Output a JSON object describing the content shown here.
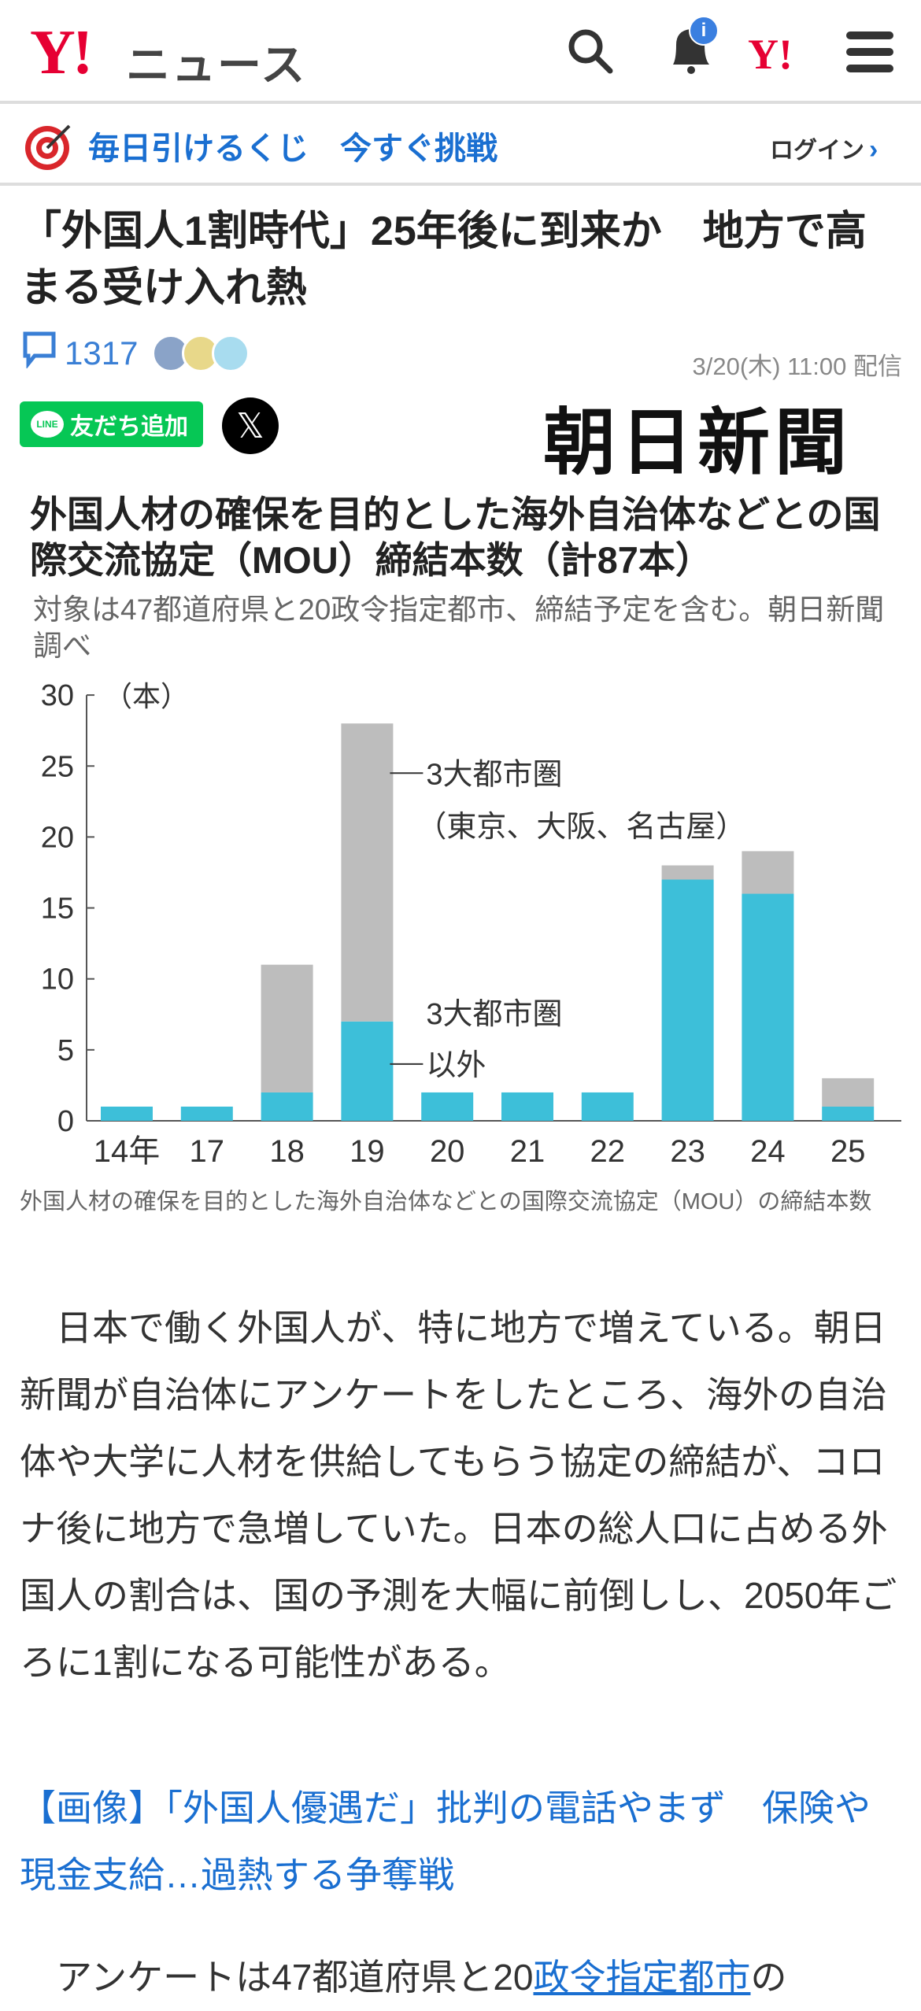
{
  "header": {
    "logo_y": "Y!",
    "logo_news": "ニュース",
    "notification_badge": "i",
    "yahoo_icon": "Y!"
  },
  "promo": {
    "text": "毎日引けるくじ　今すぐ挑戦",
    "login": "ログイン"
  },
  "article": {
    "title": "「外国人1割時代」25年後に到来か　地方で高まる受け入れ熱",
    "comment_count": "1317",
    "date": "3/20(木) 11:00 配信",
    "line_button": "友だち追加",
    "line_logo": "LINE",
    "x_button": "𝕏",
    "publisher": "朝日新聞",
    "caption": "外国人材の確保を目的とした海外自治体などとの国際交流協定（MOU）の締結本数",
    "paragraph1": "　日本で働く外国人が、特に地方で増えている。朝日新聞が自治体にアンケートをしたところ、海外の自治体や大学に人材を供給してもらう協定の締結が、コロナ後に地方で急増していた。日本の総人口に占める外国人の割合は、国の予測を大幅に前倒しし、2050年ごろに1割になる可能性がある。",
    "related_link": "【画像】「外国人優遇だ」批判の電話やまず　保険や現金支給…過熱する争奪戦",
    "paragraph2_start": "　アンケートは47都道府県と20",
    "paragraph2_link": "政令指定都市",
    "paragraph2_end": "の"
  },
  "chart_data": {
    "type": "bar",
    "stacked": true,
    "title": "外国人材の確保を目的とした海外自治体などとの国際交流協定（MOU）締結本数（計87本）",
    "subtitle": "対象は47都道府県と20政令指定都市、締結予定を含む。朝日新聞調べ",
    "ylabel": "（本）",
    "ylim": [
      0,
      30
    ],
    "yticks": [
      "0",
      "5",
      "10",
      "15",
      "20",
      "25",
      "30"
    ],
    "categories": [
      "14年",
      "17",
      "18",
      "19",
      "20",
      "21",
      "22",
      "23",
      "24",
      "25"
    ],
    "series": [
      {
        "name": "3大都市圏以外",
        "color": "#3dbfd9",
        "values": [
          1,
          1,
          2,
          7,
          2,
          2,
          2,
          17,
          16,
          1
        ]
      },
      {
        "name": "3大都市圏（東京、大阪、名古屋）",
        "color": "#bdbdbd",
        "values": [
          0,
          0,
          9,
          21,
          0,
          0,
          0,
          1,
          3,
          2
        ]
      }
    ],
    "annotations": {
      "major_line1": "3大都市圏",
      "major_line2": "（東京、大阪、名古屋）",
      "other_line1": "3大都市圏",
      "other_line2": "以外"
    }
  }
}
